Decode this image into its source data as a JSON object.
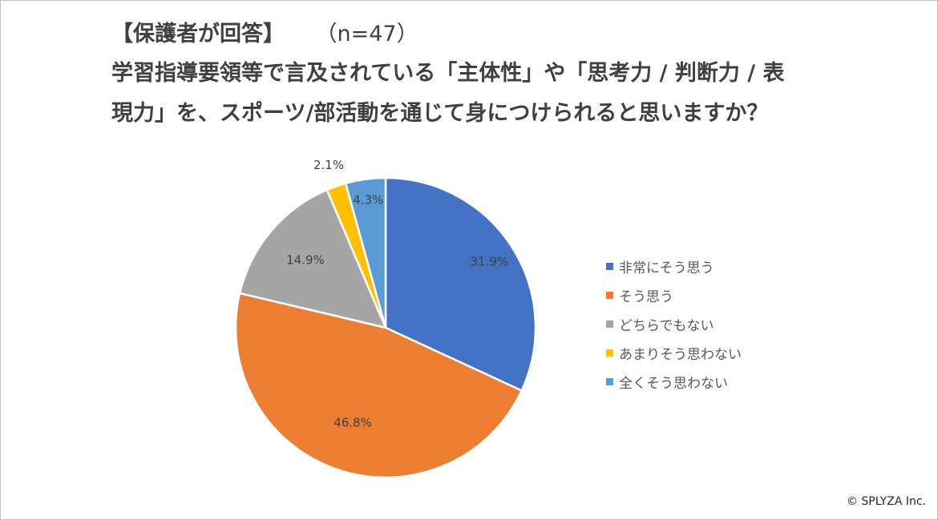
{
  "header": {
    "title_line1": "【保護者が回答】",
    "sample_size": "（n=47）",
    "title_line2": "学習指導要領等で言及されている「主体性」や「思考力 / 判断力 / 表",
    "title_line3": "現力」を、スポーツ/部活動を通じて身につけられると思いますか？"
  },
  "chart_data": {
    "type": "pie",
    "title": "学習指導要領等で言及されている「主体性」や「思考力 / 判断力 / 表現力」を、スポーツ/部活動を通じて身につけられると思いますか？",
    "categories": [
      "非常にそう思う",
      "そう思う",
      "どちらでもない",
      "あまりそう思わない",
      "全くそう思わない"
    ],
    "values": [
      31.9,
      46.8,
      14.9,
      2.1,
      4.3
    ],
    "labels": [
      "31.9%",
      "46.8%",
      "14.9%",
      "2.1%",
      "4.3%"
    ],
    "colors": [
      "#4472C4",
      "#ED7D31",
      "#A5A5A5",
      "#FFC000",
      "#5B9BD5"
    ],
    "start_angle_deg": 0,
    "direction": "clockwise",
    "legend_position": "right"
  },
  "footer": {
    "copyright": "© SPLYZA Inc."
  }
}
